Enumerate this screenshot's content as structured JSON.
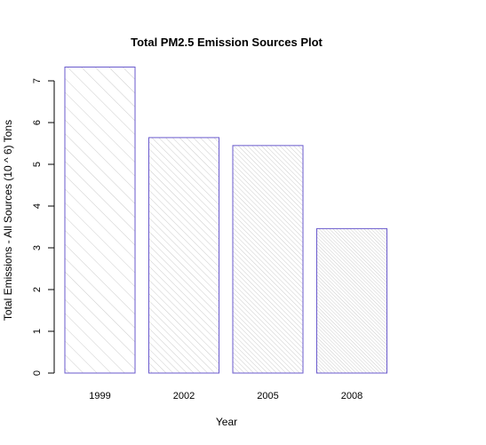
{
  "chart_data": {
    "type": "bar",
    "title": "Total PM2.5 Emission Sources Plot",
    "xlabel": "Year",
    "ylabel": "Total Emissions - All Sources (10 ^ 6) Tons",
    "categories": [
      "1999",
      "2002",
      "2005",
      "2008"
    ],
    "values": [
      7.33,
      5.64,
      5.45,
      3.46
    ],
    "ylim": [
      0,
      7.5
    ],
    "yticks": [
      "0",
      "1",
      "2",
      "3",
      "4",
      "5",
      "6",
      "7"
    ],
    "grid": false,
    "legend": "none",
    "bar_border_color": "#6a5acd",
    "bar_hatch_color": "#cccccc",
    "hatch_density": [
      1,
      2,
      3,
      4
    ]
  }
}
